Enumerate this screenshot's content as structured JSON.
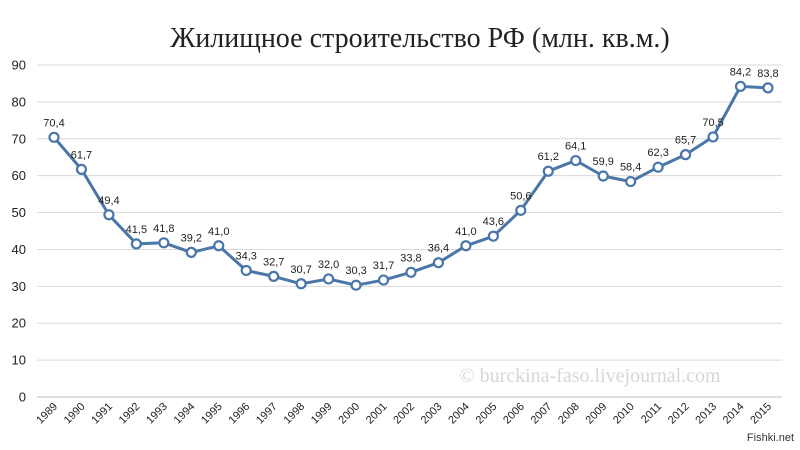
{
  "chart_data": {
    "type": "line",
    "title": "Жилищное строительство РФ  (млн. кв.м.)",
    "xlabel": "",
    "ylabel": "",
    "ylim": [
      0,
      90
    ],
    "yticks": [
      0,
      10,
      20,
      30,
      40,
      50,
      60,
      70,
      80,
      90
    ],
    "grid": true,
    "legend": "none",
    "x": [
      "1989",
      "1990",
      "1991",
      "1992",
      "1993",
      "1994",
      "1995",
      "1996",
      "1997",
      "1998",
      "1999",
      "2000",
      "2001",
      "2002",
      "2003",
      "2004",
      "2005",
      "2006",
      "2007",
      "2008",
      "2009",
      "2010",
      "2011",
      "2012",
      "2013",
      "2014",
      "2015"
    ],
    "series": [
      {
        "values": [
          70.4,
          61.7,
          49.4,
          41.5,
          41.8,
          39.2,
          41.0,
          34.3,
          32.7,
          30.7,
          32.0,
          30.3,
          31.7,
          33.8,
          36.4,
          41.0,
          43.6,
          50.6,
          61.2,
          64.1,
          59.9,
          58.4,
          62.3,
          65.7,
          70.5,
          84.2,
          83.8
        ],
        "labels": [
          "70,4",
          "61,7",
          "49,4",
          "41,5",
          "41,8",
          "39,2",
          "41,0",
          "34,3",
          "32,7",
          "30,7",
          "32,0",
          "30,3",
          "31,7",
          "33,8",
          "36,4",
          "41,0",
          "43,6",
          "50,6",
          "61,2",
          "64,1",
          "59,9",
          "58,4",
          "62,3",
          "65,7",
          "70,5",
          "84,2",
          "83,8"
        ]
      }
    ],
    "colors": {
      "line": "#4a76a8",
      "marker_fill": "#ffffff",
      "marker_stroke": "#4a76a8"
    }
  },
  "watermark": "© burckina-faso.livejournal.com",
  "corner_mark": "Fishki.net"
}
